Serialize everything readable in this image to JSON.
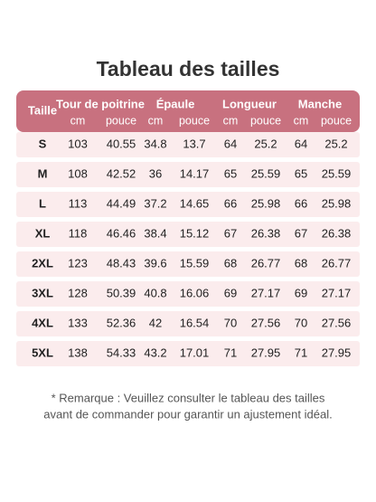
{
  "title": "Tableau des tailles",
  "table": {
    "size_header": "Taille",
    "groups": [
      "Tour de poitrine",
      "Épaule",
      "Longueur",
      "Manche"
    ],
    "units": [
      "cm",
      "pouce",
      "cm",
      "pouce",
      "cm",
      "pouce",
      "cm",
      "pouce"
    ],
    "rows": [
      [
        "S",
        "103",
        "40.55",
        "34.8",
        "13.7",
        "64",
        "25.2",
        "64",
        "25.2"
      ],
      [
        "M",
        "108",
        "42.52",
        "36",
        "14.17",
        "65",
        "25.59",
        "65",
        "25.59"
      ],
      [
        "L",
        "113",
        "44.49",
        "37.2",
        "14.65",
        "66",
        "25.98",
        "66",
        "25.98"
      ],
      [
        "XL",
        "118",
        "46.46",
        "38.4",
        "15.12",
        "67",
        "26.38",
        "67",
        "26.38"
      ],
      [
        "2XL",
        "123",
        "48.43",
        "39.6",
        "15.59",
        "68",
        "26.77",
        "68",
        "26.77"
      ],
      [
        "3XL",
        "128",
        "50.39",
        "40.8",
        "16.06",
        "69",
        "27.17",
        "69",
        "27.17"
      ],
      [
        "4XL",
        "133",
        "52.36",
        "42",
        "16.54",
        "70",
        "27.56",
        "70",
        "27.56"
      ],
      [
        "5XL",
        "138",
        "54.33",
        "43.2",
        "17.01",
        "71",
        "27.95",
        "71",
        "27.95"
      ]
    ]
  },
  "note": [
    "* Remarque : Veuillez consulter le tableau des tailles",
    "avant de commander pour garantir un ajustement idéal."
  ]
}
